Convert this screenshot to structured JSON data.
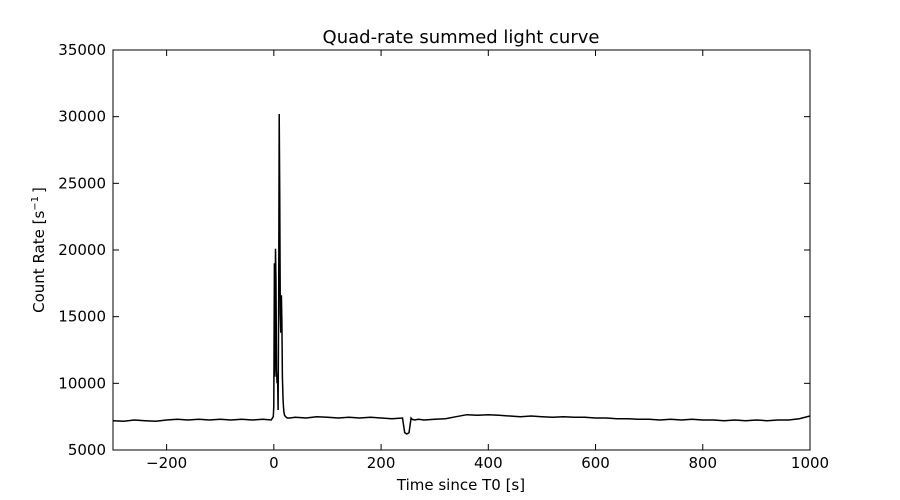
{
  "chart_data": {
    "type": "line",
    "title": "Quad-rate summed light curve",
    "xlabel": "Time since T0 [s]",
    "ylabel_text": "Count Rate [s",
    "ylabel_sup": "−1",
    "ylabel_close": "]",
    "xlim": [
      -300,
      1000
    ],
    "ylim": [
      5000,
      35000
    ],
    "xticks": [
      -200,
      0,
      200,
      400,
      600,
      800,
      1000
    ],
    "xtick_labels": [
      "−200",
      "0",
      "200",
      "400",
      "600",
      "800",
      "1000"
    ],
    "yticks": [
      5000,
      10000,
      15000,
      20000,
      25000,
      30000,
      35000
    ],
    "ytick_labels": [
      "5000",
      "10000",
      "15000",
      "20000",
      "25000",
      "30000",
      "35000"
    ],
    "grid": false,
    "colors": {
      "line": "#000000"
    },
    "series": [
      {
        "x": [
          -300,
          -280,
          -260,
          -240,
          -220,
          -200,
          -180,
          -160,
          -140,
          -120,
          -100,
          -80,
          -60,
          -40,
          -20,
          -5,
          -1,
          0,
          1,
          2,
          3,
          4,
          5,
          6,
          7,
          8,
          9,
          10,
          11,
          12,
          13,
          14,
          15,
          16,
          17,
          18,
          19,
          20,
          22,
          25,
          30,
          40,
          60,
          80,
          100,
          120,
          140,
          160,
          180,
          200,
          220,
          240,
          244,
          248,
          252,
          256,
          258,
          262,
          270,
          280,
          300,
          320,
          340,
          360,
          380,
          400,
          420,
          440,
          460,
          480,
          500,
          520,
          540,
          560,
          580,
          600,
          620,
          640,
          660,
          680,
          700,
          720,
          740,
          760,
          780,
          800,
          820,
          840,
          860,
          880,
          900,
          920,
          940,
          960,
          980,
          1000
        ],
        "y": [
          7200,
          7150,
          7250,
          7200,
          7150,
          7250,
          7300,
          7250,
          7300,
          7250,
          7300,
          7250,
          7300,
          7250,
          7300,
          7250,
          7500,
          8300,
          19000,
          10500,
          20100,
          17500,
          11000,
          10000,
          10500,
          8000,
          16500,
          30200,
          24700,
          15200,
          13800,
          16600,
          14500,
          10500,
          8900,
          8200,
          7800,
          7600,
          7500,
          7400,
          7400,
          7450,
          7400,
          7500,
          7450,
          7400,
          7450,
          7400,
          7450,
          7400,
          7350,
          7400,
          6300,
          6200,
          6300,
          7400,
          7300,
          7250,
          7300,
          7250,
          7300,
          7350,
          7500,
          7650,
          7600,
          7650,
          7600,
          7550,
          7500,
          7550,
          7500,
          7450,
          7500,
          7450,
          7450,
          7400,
          7400,
          7350,
          7350,
          7300,
          7300,
          7250,
          7300,
          7250,
          7300,
          7250,
          7250,
          7200,
          7250,
          7200,
          7250,
          7200,
          7250,
          7250,
          7350,
          7550
        ]
      }
    ]
  }
}
